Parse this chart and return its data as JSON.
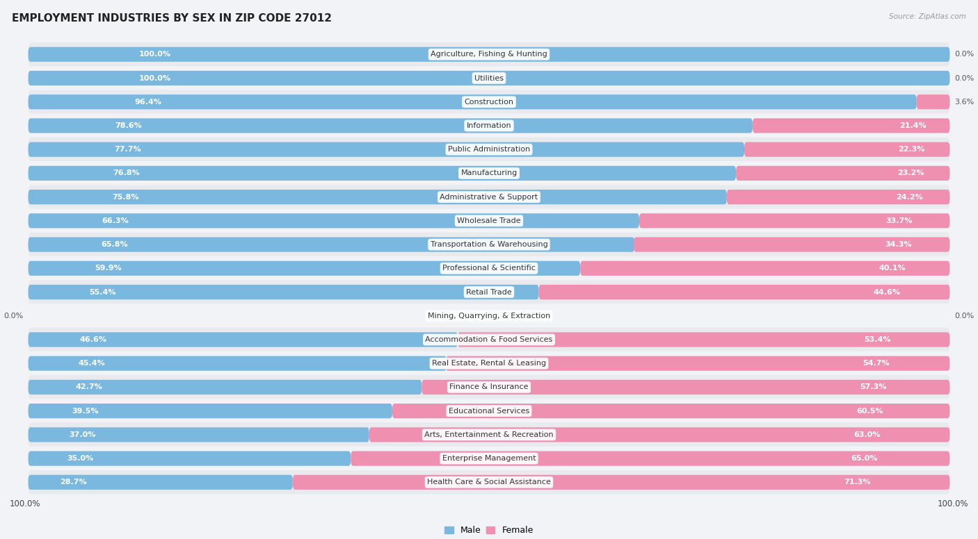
{
  "title": "EMPLOYMENT INDUSTRIES BY SEX IN ZIP CODE 27012",
  "source": "Source: ZipAtlas.com",
  "male_color": "#7ab8e0",
  "female_color": "#f090b0",
  "row_color_odd": "#e8eaee",
  "row_color_even": "#f2f3f6",
  "background_color": "#f2f3f6",
  "categories": [
    "Agriculture, Fishing & Hunting",
    "Utilities",
    "Construction",
    "Information",
    "Public Administration",
    "Manufacturing",
    "Administrative & Support",
    "Wholesale Trade",
    "Transportation & Warehousing",
    "Professional & Scientific",
    "Retail Trade",
    "Mining, Quarrying, & Extraction",
    "Accommodation & Food Services",
    "Real Estate, Rental & Leasing",
    "Finance & Insurance",
    "Educational Services",
    "Arts, Entertainment & Recreation",
    "Enterprise Management",
    "Health Care & Social Assistance"
  ],
  "male_pct": [
    100.0,
    100.0,
    96.4,
    78.6,
    77.7,
    76.8,
    75.8,
    66.3,
    65.8,
    59.9,
    55.4,
    0.0,
    46.6,
    45.4,
    42.7,
    39.5,
    37.0,
    35.0,
    28.7
  ],
  "female_pct": [
    0.0,
    0.0,
    3.6,
    21.4,
    22.3,
    23.2,
    24.2,
    33.7,
    34.3,
    40.1,
    44.6,
    0.0,
    53.4,
    54.7,
    57.3,
    60.5,
    63.0,
    65.0,
    71.3
  ],
  "title_fontsize": 11,
  "cat_label_fontsize": 8,
  "bar_label_fontsize": 8,
  "legend_fontsize": 9,
  "axis_fontsize": 8.5
}
